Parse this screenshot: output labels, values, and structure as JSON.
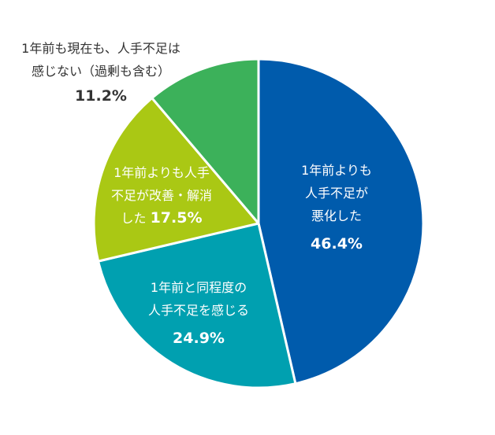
{
  "chart_data": {
    "type": "pie",
    "categories": [
      "1年前よりも人手不足が悪化した",
      "1年前と同程度の人手不足を感じる",
      "1年前よりも人手不足が改善・解消した",
      "1年前も現在も、人手不足は感じない（過剰も含む）"
    ],
    "values": [
      46.4,
      24.9,
      17.5,
      11.2
    ],
    "unit": "%",
    "colors": [
      "#005bac",
      "#00a0b0",
      "#aac814",
      "#3cb15a"
    ],
    "start_angle": "12 o'clock",
    "direction": "clockwise",
    "legend": "none",
    "slices": [
      {
        "label_lines": [
          "1年前よりも",
          "人手不足が",
          "悪化した"
        ],
        "value_text": "46.4%",
        "label_color": "#ffffff",
        "value_color": "#ffffff"
      },
      {
        "label_lines": [
          "1年前と同程度の",
          "人手不足を感じる"
        ],
        "value_text": "24.9%",
        "label_color": "#ffffff",
        "value_color": "#ffffff"
      },
      {
        "label_lines": [
          "1年前よりも人手",
          "不足が改善・解消",
          "した"
        ],
        "value_text": "17.5%",
        "label_color": "#ffffff",
        "value_color": "#ffffff"
      },
      {
        "label_lines": [
          "1年前も現在も、人手不足は",
          "感じない（過剰も含む）"
        ],
        "value_text": "11.2%",
        "label_color": "#333333",
        "value_color": "#333333"
      }
    ]
  }
}
